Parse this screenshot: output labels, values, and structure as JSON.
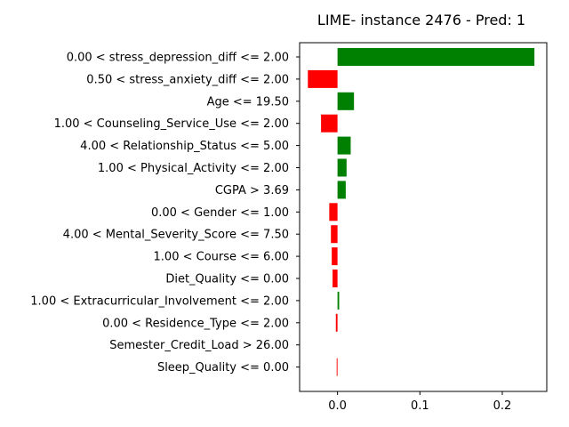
{
  "chart_data": {
    "type": "bar",
    "orientation": "horizontal",
    "title": "LIME- instance 2476 - Pred: 1",
    "xlabel": "",
    "ylabel": "",
    "xlim": [
      -0.046,
      0.254
    ],
    "xticks": [
      0.0,
      0.1,
      0.2
    ],
    "xtick_labels": [
      "0.0",
      "0.1",
      "0.2"
    ],
    "grid": false,
    "positive_color": "#008000",
    "negative_color": "#ff0000",
    "categories": [
      "0.00 < stress_depression_diff <= 2.00",
      "0.50 < stress_anxiety_diff <= 2.00",
      "Age <= 19.50",
      "1.00 < Counseling_Service_Use <= 2.00",
      "4.00 < Relationship_Status <= 5.00",
      "1.00 < Physical_Activity <= 2.00",
      "CGPA > 3.69",
      "0.00 < Gender <= 1.00",
      "4.00 < Mental_Severity_Score <= 7.50",
      "1.00 < Course <= 6.00",
      "Diet_Quality <= 0.00",
      "1.00 < Extracurricular_Involvement <= 2.00",
      "0.00 < Residence_Type <= 2.00",
      "Semester_Credit_Load > 26.00",
      "Sleep_Quality <= 0.00"
    ],
    "values": [
      0.239,
      -0.036,
      0.02,
      -0.02,
      0.016,
      0.011,
      0.01,
      -0.01,
      -0.008,
      -0.007,
      -0.006,
      0.002,
      -0.002,
      0.0,
      -0.001
    ]
  }
}
